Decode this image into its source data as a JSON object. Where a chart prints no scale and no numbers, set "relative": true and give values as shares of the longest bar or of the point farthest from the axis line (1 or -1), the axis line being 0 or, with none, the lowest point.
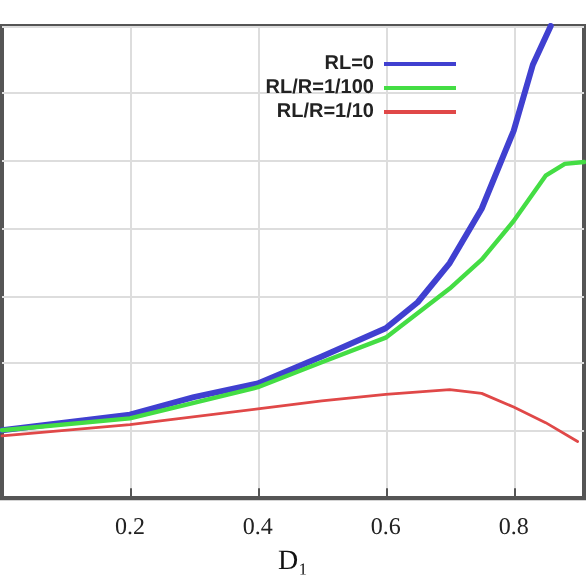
{
  "chart_data": {
    "type": "line",
    "xlabel": "D₁",
    "relative": true,
    "xlim": [
      0,
      0.91
    ],
    "xticks": [
      0.2,
      0.4,
      0.6,
      0.8
    ],
    "grid": true,
    "legend": "top right",
    "marker": "none",
    "line_style": "solid",
    "series": [
      {
        "name": "RL=0",
        "color": "#4040d0",
        "x": [
          0,
          0.2,
          0.3,
          0.4,
          0.5,
          0.6,
          0.65,
          0.7,
          0.75,
          0.8,
          0.83,
          0.858
        ],
        "values": [
          0.144,
          0.177,
          0.214,
          0.243,
          0.3,
          0.36,
          0.415,
          0.498,
          0.613,
          0.778,
          0.918,
          1
        ]
      },
      {
        "name": "RL/R=1/100",
        "color": "#44dd44",
        "x": [
          0,
          0.2,
          0.4,
          0.5,
          0.6,
          0.7,
          0.75,
          0.8,
          0.85,
          0.88,
          0.91
        ],
        "values": [
          0.144,
          0.169,
          0.235,
          0.288,
          0.34,
          0.444,
          0.505,
          0.587,
          0.683,
          0.708,
          0.712
        ]
      },
      {
        "name": "RL/R=1/10",
        "color": "#e04848",
        "x": [
          0,
          0.2,
          0.4,
          0.5,
          0.6,
          0.7,
          0.75,
          0.8,
          0.85,
          0.9
        ],
        "values": [
          0.132,
          0.156,
          0.189,
          0.206,
          0.22,
          0.23,
          0.222,
          0.193,
          0.16,
          0.12
        ]
      }
    ]
  }
}
